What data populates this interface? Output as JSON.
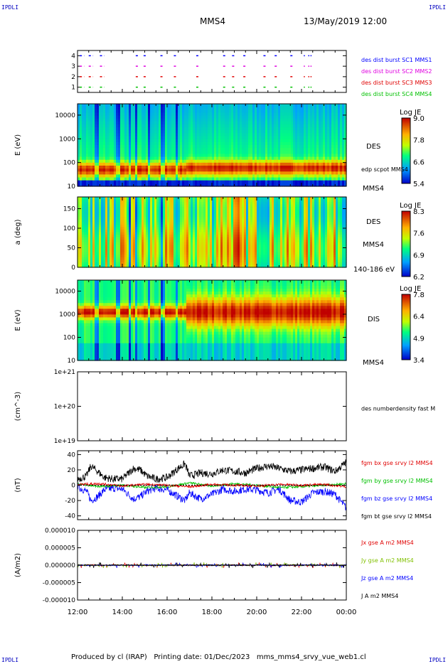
{
  "header": {
    "corner_label": "IPDLI",
    "spacecraft": "MMS4",
    "datetime": "13/May/2019 12:00"
  },
  "footer": {
    "text": "Produced by cl (IRAP)   Printing date: 01/Dec/2023   mms_mms4_srvy_vue_web1.cl"
  },
  "colors": {
    "black": "#000000",
    "red": "#e00000",
    "green": "#00c000",
    "blue": "#0000ff",
    "magenta": "#e000e0",
    "yellowgreen": "#80c000"
  },
  "time_axis": {
    "ticks": [
      "12:00",
      "14:00",
      "16:00",
      "18:00",
      "20:00",
      "22:00",
      "00:00"
    ],
    "start_hour": 12,
    "end_hour": 24
  },
  "chart_data": [
    {
      "type": "scatter",
      "panel": "burst",
      "ylim": [
        0.5,
        4.5
      ],
      "yticks": [
        "1",
        "2",
        "3",
        "4"
      ],
      "legend": [
        {
          "label": "des dist burst SC1 MMS1",
          "color": "#0000ff"
        },
        {
          "label": "des dist burst SC2 MMS2",
          "color": "#e000e0"
        },
        {
          "label": "des dist burst SC3 MMS3",
          "color": "#e00000"
        },
        {
          "label": "des dist burst SC4 MMS4",
          "color": "#00c000"
        }
      ],
      "segments_hours": [
        [
          12.1,
          12.3
        ],
        [
          12.5,
          12.7
        ],
        [
          13.0,
          13.2
        ],
        [
          14.6,
          14.75
        ],
        [
          14.95,
          15.1
        ],
        [
          15.7,
          15.85
        ],
        [
          16.3,
          16.4
        ],
        [
          17.3,
          17.4
        ],
        [
          18.5,
          18.6
        ],
        [
          18.9,
          19.0
        ],
        [
          19.4,
          19.5
        ],
        [
          20.3,
          20.4
        ],
        [
          20.8,
          20.9
        ],
        [
          21.5,
          21.6
        ],
        [
          22.1,
          22.15
        ],
        [
          22.3,
          22.35
        ],
        [
          22.4,
          22.45
        ]
      ]
    },
    {
      "type": "heatmap",
      "panel": "des-energy",
      "ylabel": "E (eV)",
      "yscale": "log",
      "ylim": [
        10,
        30000
      ],
      "yticks": [
        "10",
        "100",
        "1000",
        "10000"
      ],
      "right_labels": [
        "DES",
        "edp scpot MMS4",
        "MMS4"
      ],
      "colorbar": {
        "title": "Log JE",
        "ticks": [
          "5.4",
          "6.6",
          "7.8",
          "9.0"
        ]
      }
    },
    {
      "type": "heatmap",
      "panel": "des-pitch",
      "ylabel": "a (deg)",
      "ylim": [
        0,
        180
      ],
      "yticks": [
        "0",
        "50",
        "100",
        "150"
      ],
      "right_labels": [
        "DES",
        "MMS4",
        "140-186 eV"
      ],
      "colorbar": {
        "title": "Log JE",
        "ticks": [
          "6.2",
          "6.9",
          "7.6",
          "8.3"
        ]
      }
    },
    {
      "type": "heatmap",
      "panel": "dis-energy",
      "ylabel": "E (eV)",
      "yscale": "log",
      "ylim": [
        10,
        30000
      ],
      "yticks": [
        "10",
        "100",
        "1000",
        "10000"
      ],
      "right_labels": [
        "DIS",
        "MMS4"
      ],
      "colorbar": {
        "title": "Log JE",
        "ticks": [
          "3.4",
          "4.9",
          "6.4",
          "7.8"
        ]
      }
    },
    {
      "type": "line",
      "panel": "density",
      "ylabel": "(cm^-3)",
      "yscale": "log",
      "ylim": [
        1e+19,
        1e+21
      ],
      "yticks": [
        "1e+19",
        "1e+20",
        "1e+21"
      ],
      "legend": [
        {
          "label": "des numberdensity fast M",
          "color": "#000000"
        }
      ]
    },
    {
      "type": "line",
      "panel": "fgm",
      "ylabel": "(nT)",
      "ylim": [
        -45,
        45
      ],
      "yticks": [
        "-40",
        "-20",
        "0",
        "20",
        "40"
      ],
      "legend": [
        {
          "label": "fgm bx gse srvy l2 MMS4",
          "color": "#e00000"
        },
        {
          "label": "fgm by gse srvy l2 MMS4",
          "color": "#00c000"
        },
        {
          "label": "fgm bz gse srvy l2 MMS4",
          "color": "#0000ff"
        },
        {
          "label": "fgm bt gse srvy l2 MMS4",
          "color": "#000000"
        }
      ],
      "series": [
        {
          "name": "fgm bt gse srvy l2 MMS4",
          "hours": [
            12,
            12.4,
            12.6,
            12.9,
            13.2,
            13.6,
            14.0,
            14.5,
            14.8,
            15.1,
            15.5,
            16.0,
            16.5,
            16.8,
            17.0,
            17.5,
            18.0,
            18.5,
            19.0,
            19.5,
            20.0,
            20.5,
            21.0,
            21.5,
            22.0,
            22.5,
            23.0,
            23.5,
            24
          ],
          "values": [
            8,
            12,
            25,
            18,
            10,
            8,
            8,
            22,
            20,
            12,
            8,
            10,
            22,
            28,
            12,
            16,
            15,
            20,
            18,
            16,
            22,
            25,
            22,
            18,
            20,
            22,
            24,
            18,
            30
          ]
        },
        {
          "name": "fgm bz gse srvy l2 MMS4",
          "hours": [
            12,
            12.4,
            12.6,
            12.9,
            13.2,
            13.6,
            14.0,
            14.5,
            14.8,
            15.1,
            15.5,
            16.0,
            16.5,
            16.8,
            17.0,
            17.5,
            18.0,
            18.5,
            19.0,
            19.5,
            20.0,
            20.5,
            21.0,
            21.5,
            22.0,
            22.5,
            23.0,
            23.5,
            24
          ],
          "values": [
            -2,
            -8,
            -20,
            -15,
            -6,
            -4,
            -5,
            -18,
            -15,
            -8,
            -4,
            -6,
            -15,
            -20,
            -10,
            -18,
            -12,
            -5,
            -8,
            -5,
            -6,
            -10,
            -5,
            -20,
            -22,
            -10,
            -8,
            -12,
            -30
          ]
        },
        {
          "name": "fgm by gse srvy l2 MMS4",
          "hours": [
            12,
            13,
            14,
            15,
            16,
            17,
            18,
            19,
            20,
            21,
            22,
            23,
            24
          ],
          "values": [
            2,
            -2,
            0,
            -3,
            -2,
            3,
            -1,
            2,
            0,
            -3,
            -2,
            0,
            2
          ]
        },
        {
          "name": "fgm bx gse srvy l2 MMS4",
          "hours": [
            12,
            13,
            14,
            15,
            16,
            17,
            18,
            19,
            20,
            21,
            22,
            23,
            24
          ],
          "values": [
            1,
            2,
            -1,
            1,
            0,
            -2,
            1,
            0,
            -1,
            1,
            0,
            1,
            -2
          ]
        }
      ]
    },
    {
      "type": "line",
      "panel": "current",
      "ylabel": "(A/m2)",
      "ylim": [
        -0.0001,
        0.0001
      ],
      "yticks": [
        "-0.000010",
        "-0.000005",
        "0.000000",
        "0.000005",
        "0.000010"
      ],
      "legend": [
        {
          "label": "Jx gse A m2 MMS4",
          "color": "#e00000"
        },
        {
          "label": "Jy gse A m2 MMS4",
          "color": "#80c000"
        },
        {
          "label": "Jz gse A m2 MMS4",
          "color": "#0000ff"
        },
        {
          "label": "J A m2 MMS4",
          "color": "#000000"
        }
      ]
    }
  ]
}
